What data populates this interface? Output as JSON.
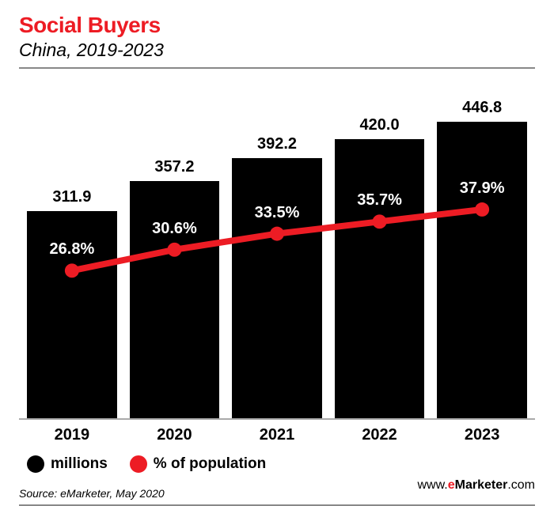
{
  "title": "Social Buyers",
  "subtitle": "China, 2019-2023",
  "chart": {
    "type": "bar+line",
    "categories": [
      "2019",
      "2020",
      "2021",
      "2022",
      "2023"
    ],
    "bar_values": [
      311.9,
      357.2,
      392.2,
      420.0,
      446.8
    ],
    "bar_labels": [
      "311.9",
      "357.2",
      "392.2",
      "420.0",
      "446.8"
    ],
    "bar_color": "#000000",
    "bar_ymax": 500,
    "line_values": [
      26.8,
      30.6,
      33.5,
      35.7,
      37.9
    ],
    "line_labels": [
      "26.8%",
      "30.6%",
      "33.5%",
      "35.7%",
      "37.9%"
    ],
    "line_color": "#ed1c24",
    "line_width": 8,
    "marker_radius": 9,
    "line_ymax": 60,
    "background_color": "#ffffff",
    "axis_color": "#aaaaaa",
    "bar_label_fontsize": 20,
    "pct_label_fontsize": 20,
    "pct_label_color": "#ffffff",
    "xaxis_fontsize": 20
  },
  "legend": {
    "bars": "millions",
    "line": "% of population"
  },
  "source": "Source: eMarketer, May 2020",
  "brand": {
    "www": "www.",
    "e": "e",
    "marketer": "Marketer",
    "dotcom": ".com"
  }
}
